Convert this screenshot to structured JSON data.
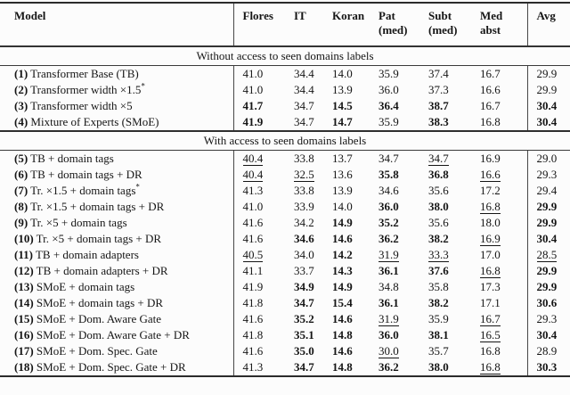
{
  "page": {
    "background": "#fcfcfc",
    "ink": "#151515",
    "rule_color": "#2b2b2b"
  },
  "table": {
    "columns": [
      {
        "key": "model",
        "label": "Model",
        "sublabel": ""
      },
      {
        "key": "flores",
        "label": "Flores",
        "sublabel": ""
      },
      {
        "key": "it",
        "label": "IT",
        "sublabel": ""
      },
      {
        "key": "koran",
        "label": "Koran",
        "sublabel": ""
      },
      {
        "key": "pat_med",
        "label": "Pat",
        "sublabel": "(med)"
      },
      {
        "key": "subt_med",
        "label": "Subt",
        "sublabel": "(med)"
      },
      {
        "key": "med_abst",
        "label": "Med",
        "sublabel": "abst"
      },
      {
        "key": "avg",
        "label": "Avg",
        "sublabel": ""
      }
    ],
    "value_style_legend": {
      "b": "bold (best overall)",
      "u": "underlined",
      "": "plain"
    },
    "sections": [
      {
        "title": "Without access to seen domains labels",
        "rows": [
          {
            "num": "(1)",
            "model": "Transformer Base (TB)",
            "sup": "",
            "values": [
              [
                "41.0",
                ""
              ],
              [
                "34.4",
                ""
              ],
              [
                "14.0",
                ""
              ],
              [
                "35.9",
                ""
              ],
              [
                "37.4",
                ""
              ],
              [
                "16.7",
                ""
              ],
              [
                "29.9",
                ""
              ]
            ]
          },
          {
            "num": "(2)",
            "model": "Transformer width ×1.5",
            "sup": "*",
            "values": [
              [
                "41.0",
                ""
              ],
              [
                "34.4",
                ""
              ],
              [
                "13.9",
                ""
              ],
              [
                "36.0",
                ""
              ],
              [
                "37.3",
                ""
              ],
              [
                "16.6",
                ""
              ],
              [
                "29.9",
                ""
              ]
            ]
          },
          {
            "num": "(3)",
            "model": "Transformer width ×5",
            "sup": "",
            "values": [
              [
                "41.7",
                "b"
              ],
              [
                "34.7",
                ""
              ],
              [
                "14.5",
                "b"
              ],
              [
                "36.4",
                "b"
              ],
              [
                "38.7",
                "b"
              ],
              [
                "16.7",
                ""
              ],
              [
                "30.4",
                "b"
              ]
            ]
          },
          {
            "num": "(4)",
            "model": "Mixture of Experts (SMoE)",
            "sup": "",
            "values": [
              [
                "41.9",
                "b"
              ],
              [
                "34.7",
                ""
              ],
              [
                "14.7",
                "b"
              ],
              [
                "35.9",
                ""
              ],
              [
                "38.3",
                "b"
              ],
              [
                "16.8",
                ""
              ],
              [
                "30.4",
                "b"
              ]
            ]
          }
        ]
      },
      {
        "title": "With access to seen domains labels",
        "rows": [
          {
            "num": "(5)",
            "model": "TB + domain tags",
            "sup": "",
            "values": [
              [
                "40.4",
                "u"
              ],
              [
                "33.8",
                ""
              ],
              [
                "13.7",
                ""
              ],
              [
                "34.7",
                ""
              ],
              [
                "34.7",
                "u"
              ],
              [
                "16.9",
                ""
              ],
              [
                "29.0",
                ""
              ]
            ]
          },
          {
            "num": "(6)",
            "model": "TB + domain tags + DR",
            "sup": "",
            "values": [
              [
                "40.4",
                "u"
              ],
              [
                "32.5",
                "u"
              ],
              [
                "13.6",
                ""
              ],
              [
                "35.8",
                "b"
              ],
              [
                "36.8",
                "b"
              ],
              [
                "16.6",
                "u"
              ],
              [
                "29.3",
                ""
              ]
            ]
          },
          {
            "num": "(7)",
            "model": "Tr. ×1.5 + domain tags",
            "sup": "*",
            "values": [
              [
                "41.3",
                ""
              ],
              [
                "33.8",
                ""
              ],
              [
                "13.9",
                ""
              ],
              [
                "34.6",
                ""
              ],
              [
                "35.6",
                ""
              ],
              [
                "17.2",
                ""
              ],
              [
                "29.4",
                ""
              ]
            ]
          },
          {
            "num": "(8)",
            "model": "Tr. ×1.5 + domain tags + DR",
            "sup": "",
            "values": [
              [
                "41.0",
                ""
              ],
              [
                "33.9",
                ""
              ],
              [
                "14.0",
                ""
              ],
              [
                "36.0",
                "b"
              ],
              [
                "38.0",
                "b"
              ],
              [
                "16.8",
                "u"
              ],
              [
                "29.9",
                "b"
              ]
            ]
          },
          {
            "num": "(9)",
            "model": "Tr. ×5 + domain tags",
            "sup": "",
            "values": [
              [
                "41.6",
                ""
              ],
              [
                "34.2",
                ""
              ],
              [
                "14.9",
                "b"
              ],
              [
                "35.2",
                "b"
              ],
              [
                "35.6",
                ""
              ],
              [
                "18.0",
                ""
              ],
              [
                "29.9",
                "b"
              ]
            ]
          },
          {
            "num": "(10)",
            "model": "Tr. ×5 + domain tags + DR",
            "sup": "",
            "values": [
              [
                "41.6",
                ""
              ],
              [
                "34.6",
                "b"
              ],
              [
                "14.6",
                "b"
              ],
              [
                "36.2",
                "b"
              ],
              [
                "38.2",
                "b"
              ],
              [
                "16.9",
                "u"
              ],
              [
                "30.4",
                "b"
              ]
            ]
          },
          {
            "num": "(11)",
            "model": "TB + domain adapters",
            "sup": "",
            "values": [
              [
                "40.5",
                "u"
              ],
              [
                "34.0",
                ""
              ],
              [
                "14.2",
                "b"
              ],
              [
                "31.9",
                "u"
              ],
              [
                "33.3",
                "u"
              ],
              [
                "17.0",
                ""
              ],
              [
                "28.5",
                "u"
              ]
            ]
          },
          {
            "num": "(12)",
            "model": "TB + domain adapters + DR",
            "sup": "",
            "values": [
              [
                "41.1",
                ""
              ],
              [
                "33.7",
                ""
              ],
              [
                "14.3",
                "b"
              ],
              [
                "36.1",
                "b"
              ],
              [
                "37.6",
                "b"
              ],
              [
                "16.8",
                "u"
              ],
              [
                "29.9",
                "b"
              ]
            ]
          },
          {
            "num": "(13)",
            "model": "SMoE + domain tags",
            "sup": "",
            "values": [
              [
                "41.9",
                ""
              ],
              [
                "34.9",
                "b"
              ],
              [
                "14.9",
                "b"
              ],
              [
                "34.8",
                ""
              ],
              [
                "35.8",
                ""
              ],
              [
                "17.3",
                ""
              ],
              [
                "29.9",
                "b"
              ]
            ]
          },
          {
            "num": "(14)",
            "model": "SMoE + domain tags + DR",
            "sup": "",
            "values": [
              [
                "41.8",
                ""
              ],
              [
                "34.7",
                "b"
              ],
              [
                "15.4",
                "b"
              ],
              [
                "36.1",
                "b"
              ],
              [
                "38.2",
                "b"
              ],
              [
                "17.1",
                ""
              ],
              [
                "30.6",
                "b"
              ]
            ]
          },
          {
            "num": "(15)",
            "model": "SMoE + Dom. Aware Gate",
            "sup": "",
            "values": [
              [
                "41.6",
                ""
              ],
              [
                "35.2",
                "b"
              ],
              [
                "14.6",
                "b"
              ],
              [
                "31.9",
                "u"
              ],
              [
                "35.9",
                ""
              ],
              [
                "16.7",
                "u"
              ],
              [
                "29.3",
                ""
              ]
            ]
          },
          {
            "num": "(16)",
            "model": "SMoE + Dom. Aware Gate + DR",
            "sup": "",
            "values": [
              [
                "41.8",
                ""
              ],
              [
                "35.1",
                "b"
              ],
              [
                "14.8",
                "b"
              ],
              [
                "36.0",
                "b"
              ],
              [
                "38.1",
                "b"
              ],
              [
                "16.5",
                "u"
              ],
              [
                "30.4",
                "b"
              ]
            ]
          },
          {
            "num": "(17)",
            "model": "SMoE + Dom. Spec. Gate",
            "sup": "",
            "values": [
              [
                "41.6",
                ""
              ],
              [
                "35.0",
                "b"
              ],
              [
                "14.6",
                "b"
              ],
              [
                "30.0",
                "u"
              ],
              [
                "35.7",
                ""
              ],
              [
                "16.8",
                ""
              ],
              [
                "28.9",
                ""
              ]
            ]
          },
          {
            "num": "(18)",
            "model": "SMoE + Dom. Spec. Gate + DR",
            "sup": "",
            "values": [
              [
                "41.3",
                ""
              ],
              [
                "34.7",
                "b"
              ],
              [
                "14.8",
                "b"
              ],
              [
                "36.2",
                "b"
              ],
              [
                "38.0",
                "b"
              ],
              [
                "16.8",
                "u"
              ],
              [
                "30.3",
                "b"
              ]
            ]
          }
        ]
      }
    ]
  }
}
